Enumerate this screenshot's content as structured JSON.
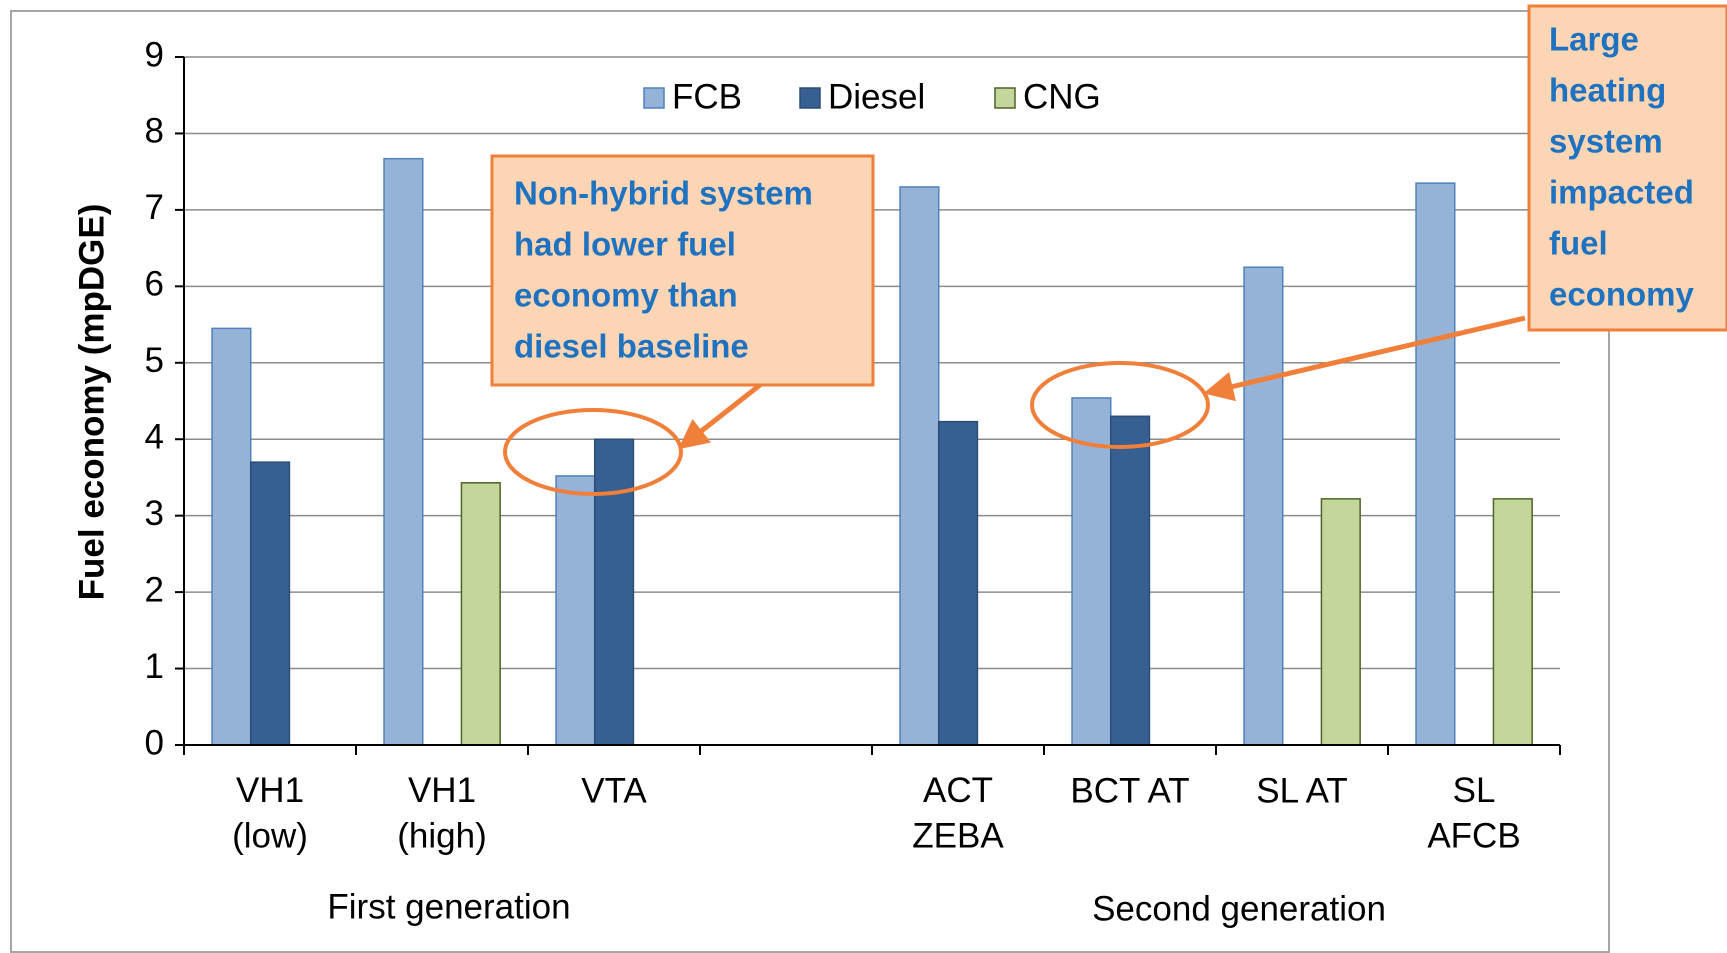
{
  "chart_data": {
    "type": "bar",
    "y_label": "Fuel economy (mpDGE)",
    "categories": [
      "VH1\n(low)",
      "VH1\n(high)",
      "VTA",
      null,
      "ACT\nZEBA",
      "BCT AT",
      "SL AT",
      "SL\nAFCB"
    ],
    "groups": [
      "First generation",
      "Second generation"
    ],
    "series": [
      {
        "name": "FCB",
        "color": "#95b3d7",
        "values": [
          5.45,
          7.67,
          3.52,
          null,
          7.3,
          4.54,
          6.25,
          7.35
        ]
      },
      {
        "name": "Diesel",
        "color": "#376092",
        "values": [
          3.7,
          null,
          4.0,
          null,
          4.23,
          4.3,
          null,
          null
        ]
      },
      {
        "name": "CNG",
        "color": "#c3d69b",
        "values": [
          null,
          3.43,
          null,
          null,
          null,
          null,
          3.22,
          3.22
        ]
      }
    ],
    "ylim": [
      0,
      9
    ],
    "yticks": [
      0,
      1,
      2,
      3,
      4,
      5,
      6,
      7,
      8,
      9
    ],
    "grid": true,
    "legend": "top",
    "annotations": [
      {
        "lines": [
          "Non-hybrid system",
          "had lower fuel",
          "economy than",
          "diesel baseline"
        ]
      },
      {
        "lines": [
          "Large",
          "heating",
          "system",
          "impacted",
          "fuel",
          "economy"
        ]
      }
    ]
  }
}
